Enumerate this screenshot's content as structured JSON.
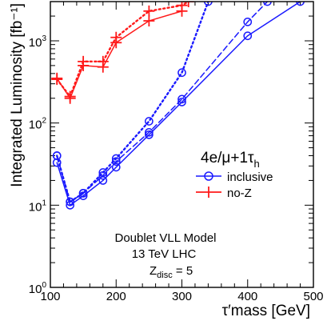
{
  "chart_data": {
    "type": "line",
    "ylog": true,
    "xlim": [
      100,
      500
    ],
    "ylim": [
      1,
      3000
    ],
    "x_ticks": [
      100,
      200,
      300,
      400,
      500
    ],
    "x_tick_labels": [
      "100",
      "200",
      "300",
      "400",
      "500"
    ],
    "y_ticks": [
      1,
      10,
      100,
      1000
    ],
    "y_tick_labels": [
      {
        "base": "10",
        "exp": "0"
      },
      {
        "base": "10",
        "exp": "1"
      },
      {
        "base": "10",
        "exp": "2"
      },
      {
        "base": "10",
        "exp": "3"
      }
    ],
    "xlabel": "τ′mass  [GeV]",
    "ylabel": "Integrated Luminosity [fb⁻¹]",
    "legend": {
      "title_main": "4e/μ+1τ",
      "title_sub": "h",
      "placement": "upper-right inside",
      "entries": [
        {
          "label": "inclusive",
          "color": "#1a1aff",
          "marker": "circle"
        },
        {
          "label": "no-Z",
          "color": "#ff1a1a",
          "marker": "plus"
        }
      ]
    },
    "annotations": {
      "model": "Doublet VLL Model",
      "energy": "13 TeV  LHC",
      "zdisc_main": "Z",
      "zdisc_sub": "disc",
      "zdisc_value": " = 5"
    },
    "series": [
      {
        "name": "inclusive",
        "color": "#1a1aff",
        "marker": "circle",
        "style": "solid",
        "x": [
          110,
          130,
          150,
          180,
          200,
          250,
          300,
          400,
          480
        ],
        "y": [
          33,
          10,
          13,
          20,
          29,
          72,
          180,
          1150,
          3000
        ]
      },
      {
        "name": "inclusive",
        "color": "#1a1aff",
        "marker": "circle",
        "style": "dashed",
        "x": [
          110,
          130,
          150,
          180,
          200,
          250,
          300,
          400,
          430
        ],
        "y": [
          40,
          11,
          14,
          23,
          34,
          77,
          195,
          1700,
          3000
        ]
      },
      {
        "name": "inclusive",
        "color": "#1a1aff",
        "marker": "circle",
        "style": "dotted",
        "x": [
          110,
          130,
          150,
          180,
          200,
          250,
          300,
          340
        ],
        "y": [
          40,
          11,
          14,
          25,
          37,
          105,
          410,
          3000
        ]
      },
      {
        "name": "no-Z",
        "color": "#ff1a1a",
        "marker": "plus",
        "style": "solid",
        "x": [
          110,
          130,
          150,
          180,
          200,
          250,
          300
        ],
        "y": [
          350,
          200,
          500,
          480,
          950,
          1750,
          2300
        ]
      },
      {
        "name": "no-Z",
        "color": "#ff1a1a",
        "marker": "plus",
        "style": "dotted",
        "x": [
          110,
          130,
          150,
          180,
          200,
          250,
          300,
          310
        ],
        "y": [
          340,
          210,
          560,
          560,
          1100,
          2300,
          2700,
          3000
        ]
      }
    ]
  }
}
